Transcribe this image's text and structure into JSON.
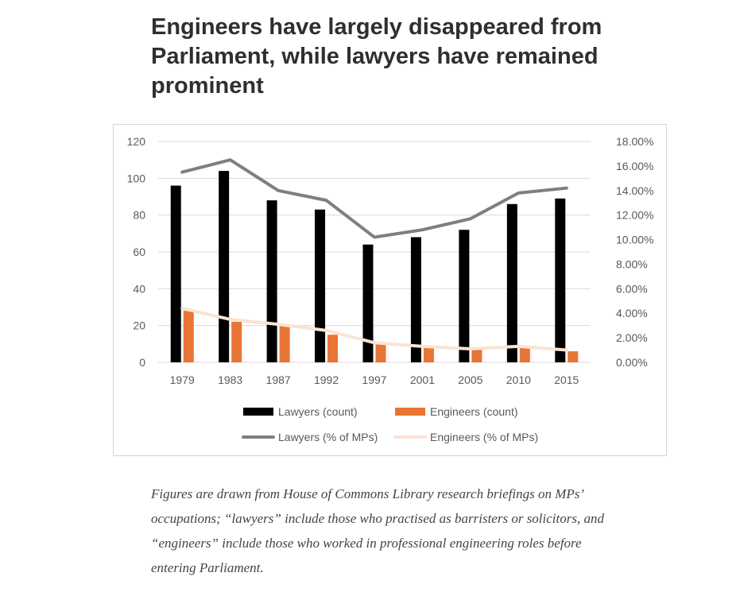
{
  "title": "Engineers have largely disappeared from Parliament, while lawyers have remained prominent",
  "caption": "Figures are drawn from House of Commons Library research briefings on MPs’ occupations; “lawyers” include those who practised as barristers or solicitors, and “engineers” include those who worked in professional engineering roles before entering Parliament.",
  "chart_data": {
    "type": "bar",
    "categories": [
      "1979",
      "1983",
      "1987",
      "1992",
      "1997",
      "2001",
      "2005",
      "2010",
      "2015"
    ],
    "series": [
      {
        "name": "Lawyers (count)",
        "kind": "bar",
        "axis": "left",
        "color": "#000000",
        "values": [
          96,
          104,
          88,
          83,
          64,
          68,
          72,
          86,
          89
        ]
      },
      {
        "name": "Engineers (count)",
        "kind": "bar",
        "axis": "left",
        "color": "#e87533",
        "values": [
          28,
          22,
          20,
          15,
          10,
          8,
          7,
          8,
          6
        ]
      },
      {
        "name": "Lawyers (% of MPs)",
        "kind": "line",
        "axis": "right",
        "color": "#7f7f7f",
        "values": [
          15.5,
          16.5,
          14.0,
          13.2,
          10.2,
          10.8,
          11.7,
          13.8,
          14.2
        ]
      },
      {
        "name": "Engineers (% of MPs)",
        "kind": "line",
        "axis": "right",
        "color": "#fbe3d4",
        "values": [
          4.4,
          3.5,
          3.1,
          2.6,
          1.6,
          1.3,
          1.1,
          1.3,
          1.0
        ]
      }
    ],
    "y_left": {
      "min": 0,
      "max": 120,
      "ticks": [
        "0",
        "20",
        "40",
        "60",
        "80",
        "100",
        "120"
      ]
    },
    "y_right": {
      "min": 0,
      "max": 18,
      "ticks": [
        "0.00%",
        "2.00%",
        "4.00%",
        "6.00%",
        "8.00%",
        "10.00%",
        "12.00%",
        "14.00%",
        "16.00%",
        "18.00%"
      ]
    },
    "grid": true,
    "legend_position": "bottom"
  }
}
